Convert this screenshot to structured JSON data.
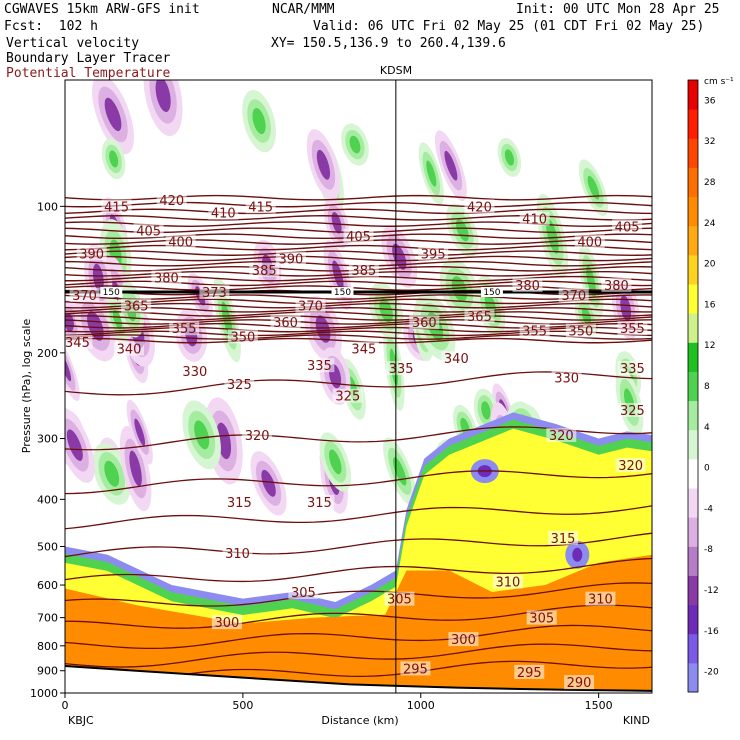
{
  "header": {
    "model": "CGWAVES 15km ARW-GFS init",
    "center": "NCAR/MMM",
    "init": "Init: 00 UTC Mon 28 Apr 25",
    "fcst": "Fcst:  102 h",
    "valid": "Valid: 06 UTC Fri 02 May 25 (01 CDT Fri 02 May 25)",
    "field1": "Vertical velocity",
    "xy": "XY= 150.5,136.9 to 260.4,139.6",
    "field2": "Boundary Layer Tracer",
    "field3": "Potential Temperature"
  },
  "station_marker": "KDSM",
  "left_station": "KBJC",
  "right_station": "KIND",
  "colorbar_unit": "cm s⁻¹",
  "colors": {
    "theta_line": "#6b0f0f",
    "tropopause_line": "#000000"
  },
  "chart_data": {
    "type": "heatmap",
    "xlabel": "Distance (km)",
    "ylabel": "Pressure (hPa), log scale",
    "xlim": [
      0,
      1650
    ],
    "ylim": [
      1000,
      55
    ],
    "y_scale": "log",
    "x_ticks": [
      0,
      500,
      1000,
      1500
    ],
    "y_ticks": [
      100,
      200,
      300,
      400,
      500,
      600,
      700,
      800,
      900,
      1000
    ],
    "station_marker_x_km": 930,
    "colorbar_levels": [
      "-20",
      "-16",
      "-12",
      "-8",
      "-4",
      "0",
      "4",
      "8",
      "12",
      "16",
      "20",
      "24",
      "28",
      "32",
      "36"
    ],
    "colorbar_colors": [
      "#8c8cf0",
      "#7a5ae6",
      "#6d2bb8",
      "#8a3aa6",
      "#b67cc8",
      "#dcb0e2",
      "#f2d8f2",
      "#ffffff",
      "#d6f5d2",
      "#a6eca0",
      "#4fd24f",
      "#1fc01f",
      "#cdf28c",
      "#ffff33",
      "#ffd21f",
      "#ffaa14",
      "#ff8c00",
      "#ff6e00",
      "#ff4600",
      "#ff1e00",
      "#e60000"
    ],
    "theta_contour_labels": [
      {
        "value": "415",
        "x": 145,
        "p": 100
      },
      {
        "value": "420",
        "x": 300,
        "p": 97
      },
      {
        "value": "410",
        "x": 445,
        "p": 103
      },
      {
        "value": "415",
        "x": 550,
        "p": 100
      },
      {
        "value": "420",
        "x": 1165,
        "p": 100
      },
      {
        "value": "410",
        "x": 1320,
        "p": 106
      },
      {
        "value": "405",
        "x": 1580,
        "p": 110
      },
      {
        "value": "390",
        "x": 75,
        "p": 125
      },
      {
        "value": "405",
        "x": 235,
        "p": 112
      },
      {
        "value": "400",
        "x": 325,
        "p": 118
      },
      {
        "value": "390",
        "x": 635,
        "p": 128
      },
      {
        "value": "405",
        "x": 825,
        "p": 115
      },
      {
        "value": "395",
        "x": 1035,
        "p": 125
      },
      {
        "value": "400",
        "x": 1475,
        "p": 118
      },
      {
        "value": "380",
        "x": 285,
        "p": 140
      },
      {
        "value": "385",
        "x": 560,
        "p": 135
      },
      {
        "value": "385",
        "x": 840,
        "p": 135
      },
      {
        "value": "380",
        "x": 1300,
        "p": 145
      },
      {
        "value": "380",
        "x": 1550,
        "p": 145
      },
      {
        "value": "370",
        "x": 55,
        "p": 152
      },
      {
        "value": "365",
        "x": 200,
        "p": 160
      },
      {
        "value": "373",
        "x": 420,
        "p": 150
      },
      {
        "value": "370",
        "x": 690,
        "p": 160
      },
      {
        "value": "370",
        "x": 1430,
        "p": 152
      },
      {
        "value": "360",
        "x": 620,
        "p": 173
      },
      {
        "value": "360",
        "x": 1010,
        "p": 173
      },
      {
        "value": "365",
        "x": 1165,
        "p": 168
      },
      {
        "value": "345",
        "x": 35,
        "p": 190
      },
      {
        "value": "355",
        "x": 335,
        "p": 178
      },
      {
        "value": "350",
        "x": 500,
        "p": 185
      },
      {
        "value": "345",
        "x": 840,
        "p": 196
      },
      {
        "value": "355",
        "x": 1320,
        "p": 180
      },
      {
        "value": "350",
        "x": 1450,
        "p": 180
      },
      {
        "value": "355",
        "x": 1595,
        "p": 178
      },
      {
        "value": "340",
        "x": 180,
        "p": 196
      },
      {
        "value": "340",
        "x": 1100,
        "p": 205
      },
      {
        "value": "335",
        "x": 1595,
        "p": 215
      },
      {
        "value": "330",
        "x": 365,
        "p": 218
      },
      {
        "value": "335",
        "x": 715,
        "p": 212
      },
      {
        "value": "335",
        "x": 945,
        "p": 215
      },
      {
        "value": "330",
        "x": 1410,
        "p": 225
      },
      {
        "value": "325",
        "x": 490,
        "p": 232
      },
      {
        "value": "325",
        "x": 795,
        "p": 245
      },
      {
        "value": "325",
        "x": 1595,
        "p": 262
      },
      {
        "value": "320",
        "x": 540,
        "p": 295
      },
      {
        "value": "320",
        "x": 1395,
        "p": 295
      },
      {
        "value": "320",
        "x": 1590,
        "p": 340
      },
      {
        "value": "315",
        "x": 490,
        "p": 405
      },
      {
        "value": "315",
        "x": 715,
        "p": 405
      },
      {
        "value": "315",
        "x": 1400,
        "p": 480
      },
      {
        "value": "310",
        "x": 485,
        "p": 515
      },
      {
        "value": "305",
        "x": 670,
        "p": 620
      },
      {
        "value": "305",
        "x": 940,
        "p": 640
      },
      {
        "value": "310",
        "x": 1245,
        "p": 590
      },
      {
        "value": "310",
        "x": 1505,
        "p": 640
      },
      {
        "value": "305",
        "x": 1340,
        "p": 700
      },
      {
        "value": "300",
        "x": 455,
        "p": 715
      },
      {
        "value": "300",
        "x": 1120,
        "p": 775
      },
      {
        "value": "295",
        "x": 985,
        "p": 890
      },
      {
        "value": "295",
        "x": 1305,
        "p": 905
      },
      {
        "value": "290",
        "x": 1445,
        "p": 950
      }
    ],
    "tropopause_labels": [
      {
        "value": "150",
        "x": 130
      },
      {
        "value": "150",
        "x": 780
      },
      {
        "value": "150",
        "x": 1200
      }
    ]
  }
}
